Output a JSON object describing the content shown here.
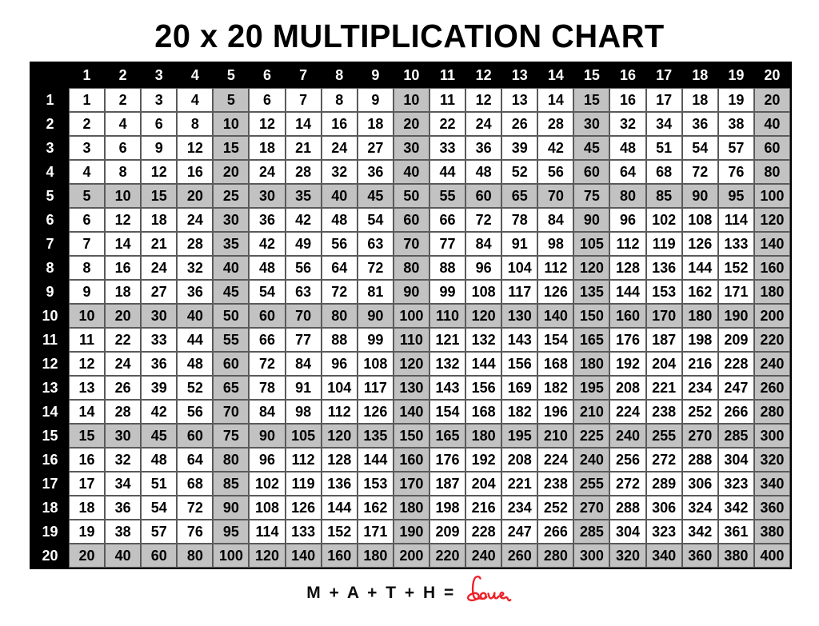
{
  "page": {
    "title": "20 x 20 MULTIPLICATION CHART",
    "footer": {
      "equation": "M + A + T + H =",
      "love_word": "love",
      "love_color": "#ee2128"
    }
  },
  "chart_data": {
    "type": "table",
    "title": "20 x 20 MULTIPLICATION CHART",
    "col_headers": [
      1,
      2,
      3,
      4,
      5,
      6,
      7,
      8,
      9,
      10,
      11,
      12,
      13,
      14,
      15,
      16,
      17,
      18,
      19,
      20
    ],
    "row_headers": [
      1,
      2,
      3,
      4,
      5,
      6,
      7,
      8,
      9,
      10,
      11,
      12,
      13,
      14,
      15,
      16,
      17,
      18,
      19,
      20
    ],
    "values": [
      [
        1,
        2,
        3,
        4,
        5,
        6,
        7,
        8,
        9,
        10,
        11,
        12,
        13,
        14,
        15,
        16,
        17,
        18,
        19,
        20
      ],
      [
        2,
        4,
        6,
        8,
        10,
        12,
        14,
        16,
        18,
        20,
        22,
        24,
        26,
        28,
        30,
        32,
        34,
        36,
        38,
        40
      ],
      [
        3,
        6,
        9,
        12,
        15,
        18,
        21,
        24,
        27,
        30,
        33,
        36,
        39,
        42,
        45,
        48,
        51,
        54,
        57,
        60
      ],
      [
        4,
        8,
        12,
        16,
        20,
        24,
        28,
        32,
        36,
        40,
        44,
        48,
        52,
        56,
        60,
        64,
        68,
        72,
        76,
        80
      ],
      [
        5,
        10,
        15,
        20,
        25,
        30,
        35,
        40,
        45,
        50,
        55,
        60,
        65,
        70,
        75,
        80,
        85,
        90,
        95,
        100
      ],
      [
        6,
        12,
        18,
        24,
        30,
        36,
        42,
        48,
        54,
        60,
        66,
        72,
        78,
        84,
        90,
        96,
        102,
        108,
        114,
        120
      ],
      [
        7,
        14,
        21,
        28,
        35,
        42,
        49,
        56,
        63,
        70,
        77,
        84,
        91,
        98,
        105,
        112,
        119,
        126,
        133,
        140
      ],
      [
        8,
        16,
        24,
        32,
        40,
        48,
        56,
        64,
        72,
        80,
        88,
        96,
        104,
        112,
        120,
        128,
        136,
        144,
        152,
        160
      ],
      [
        9,
        18,
        27,
        36,
        45,
        54,
        63,
        72,
        81,
        90,
        99,
        108,
        117,
        126,
        135,
        144,
        153,
        162,
        171,
        180
      ],
      [
        10,
        20,
        30,
        40,
        50,
        60,
        70,
        80,
        90,
        100,
        110,
        120,
        130,
        140,
        150,
        160,
        170,
        180,
        190,
        200
      ],
      [
        11,
        22,
        33,
        44,
        55,
        66,
        77,
        88,
        99,
        110,
        121,
        132,
        143,
        154,
        165,
        176,
        187,
        198,
        209,
        220
      ],
      [
        12,
        24,
        36,
        48,
        60,
        72,
        84,
        96,
        108,
        120,
        132,
        144,
        156,
        168,
        180,
        192,
        204,
        216,
        228,
        240
      ],
      [
        13,
        26,
        39,
        52,
        65,
        78,
        91,
        104,
        117,
        130,
        143,
        156,
        169,
        182,
        195,
        208,
        221,
        234,
        247,
        260
      ],
      [
        14,
        28,
        42,
        56,
        70,
        84,
        98,
        112,
        126,
        140,
        154,
        168,
        182,
        196,
        210,
        224,
        238,
        252,
        266,
        280
      ],
      [
        15,
        30,
        45,
        60,
        75,
        90,
        105,
        120,
        135,
        150,
        165,
        180,
        195,
        210,
        225,
        240,
        255,
        270,
        285,
        300
      ],
      [
        16,
        32,
        48,
        64,
        80,
        96,
        112,
        128,
        144,
        160,
        176,
        192,
        208,
        224,
        240,
        256,
        272,
        288,
        304,
        320
      ],
      [
        17,
        34,
        51,
        68,
        85,
        102,
        119,
        136,
        153,
        170,
        187,
        204,
        221,
        238,
        255,
        272,
        289,
        306,
        323,
        340
      ],
      [
        18,
        36,
        54,
        72,
        90,
        108,
        126,
        144,
        162,
        180,
        198,
        216,
        234,
        252,
        270,
        288,
        306,
        324,
        342,
        360
      ],
      [
        19,
        38,
        57,
        76,
        95,
        114,
        133,
        152,
        171,
        190,
        209,
        228,
        247,
        266,
        285,
        304,
        323,
        342,
        361,
        380
      ],
      [
        20,
        40,
        60,
        80,
        100,
        120,
        140,
        160,
        180,
        200,
        220,
        240,
        260,
        280,
        300,
        320,
        340,
        360,
        380,
        400
      ]
    ],
    "shading": {
      "rule": "rows and columns that are multiples of 5 are shaded",
      "multiple_of": 5,
      "shade_color": "#c2c2c2",
      "header_bg": "#000000",
      "header_text": "#ffffff",
      "grid_line_color": "#5a5a5a"
    },
    "legend_position": "none",
    "grid": true
  }
}
